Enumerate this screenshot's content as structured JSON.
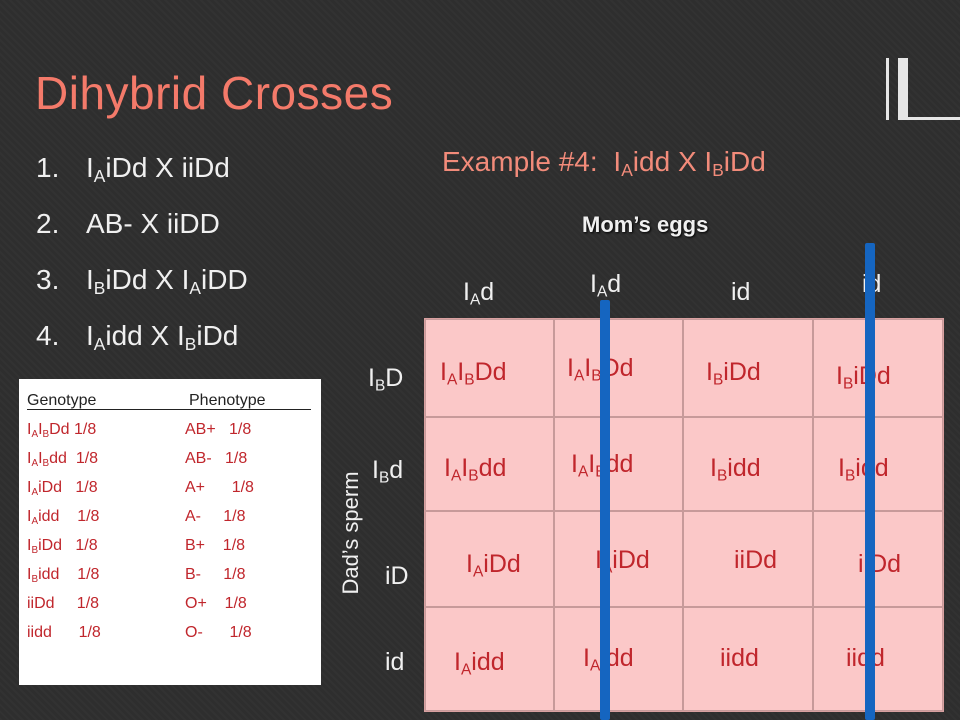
{
  "title": "Dihybrid Crosses",
  "crosses": [
    {
      "num": "1.",
      "parts": [
        [
          "I",
          "A"
        ],
        [
          "iDd X iiDd",
          ""
        ]
      ]
    },
    {
      "num": "2.",
      "parts": [
        [
          "AB- X iiDD",
          ""
        ]
      ]
    },
    {
      "num": "3.",
      "parts": [
        [
          "I",
          "B"
        ],
        [
          "iDd X I",
          ""
        ],
        [
          "",
          "A"
        ],
        [
          "iDD",
          ""
        ]
      ]
    },
    {
      "num": "4.",
      "parts": [
        [
          "I",
          "A"
        ],
        [
          "idd X I",
          ""
        ],
        [
          "",
          "B"
        ],
        [
          "iDd",
          ""
        ]
      ]
    }
  ],
  "example": {
    "prefix": "Example #4:",
    "parts": [
      [
        "I",
        "A"
      ],
      [
        "idd X I",
        ""
      ],
      [
        "",
        "B"
      ],
      [
        "iDd",
        ""
      ]
    ]
  },
  "moms_label": "Mom’s eggs",
  "dads_label": "Dad’s sperm",
  "egg_headers": [
    [
      [
        "I",
        "A"
      ],
      [
        "d",
        ""
      ]
    ],
    [
      [
        "I",
        "A"
      ],
      [
        "d",
        ""
      ]
    ],
    [
      [
        "id",
        ""
      ]
    ],
    [
      [
        "id",
        ""
      ]
    ]
  ],
  "sperm_headers": [
    [
      [
        "I",
        "B"
      ],
      [
        "D",
        ""
      ]
    ],
    [
      [
        "I",
        "B"
      ],
      [
        "d",
        ""
      ]
    ],
    [
      [
        "iD",
        ""
      ]
    ],
    [
      [
        "id",
        ""
      ]
    ]
  ],
  "punnett": [
    [
      [
        [
          "I",
          "A"
        ],
        [
          "I",
          "B"
        ],
        [
          "Dd",
          ""
        ]
      ],
      [
        [
          "I",
          "A"
        ],
        [
          "I",
          "B"
        ],
        [
          "Dd",
          ""
        ]
      ],
      [
        [
          "I",
          "B"
        ],
        [
          "iDd",
          ""
        ]
      ],
      [
        [
          "I",
          "B"
        ],
        [
          "iDd",
          ""
        ]
      ]
    ],
    [
      [
        [
          "I",
          "A"
        ],
        [
          "I",
          "B"
        ],
        [
          "dd",
          ""
        ]
      ],
      [
        [
          "I",
          "A"
        ],
        [
          "I",
          "B"
        ],
        [
          "dd",
          ""
        ]
      ],
      [
        [
          "I",
          "B"
        ],
        [
          "idd",
          ""
        ]
      ],
      [
        [
          "I",
          "B"
        ],
        [
          "idd",
          ""
        ]
      ]
    ],
    [
      [
        [
          "I",
          "A"
        ],
        [
          "iDd",
          ""
        ]
      ],
      [
        [
          "I",
          "A"
        ],
        [
          "iDd",
          ""
        ]
      ],
      [
        [
          "iiDd",
          ""
        ]
      ],
      [
        [
          "iiDd",
          ""
        ]
      ]
    ],
    [
      [
        [
          "I",
          "A"
        ],
        [
          "idd",
          ""
        ]
      ],
      [
        [
          "I",
          "A"
        ],
        [
          "idd",
          ""
        ]
      ],
      [
        [
          "iidd",
          ""
        ]
      ],
      [
        [
          "iidd",
          ""
        ]
      ]
    ]
  ],
  "genotype_table": {
    "header_genotype": "Genotype",
    "header_phenotype": "Phenotype",
    "rows": [
      {
        "geno": [
          [
            "I",
            "A"
          ],
          [
            "I",
            "B"
          ],
          [
            "Dd 1/8",
            ""
          ]
        ],
        "pheno": "AB+   1/8"
      },
      {
        "geno": [
          [
            "I",
            "A"
          ],
          [
            "I",
            "B"
          ],
          [
            "dd  1/8",
            ""
          ]
        ],
        "pheno": "AB-   1/8"
      },
      {
        "geno": [
          [
            "I",
            "A"
          ],
          [
            "iDd   1/8",
            ""
          ]
        ],
        "pheno": "A+      1/8"
      },
      {
        "geno": [
          [
            "I",
            "A"
          ],
          [
            "idd    1/8",
            ""
          ]
        ],
        "pheno": "A-     1/8"
      },
      {
        "geno": [
          [
            "I",
            "B"
          ],
          [
            "iDd   1/8",
            ""
          ]
        ],
        "pheno": "B+    1/8"
      },
      {
        "geno": [
          [
            "I",
            "B"
          ],
          [
            "idd    1/8",
            ""
          ]
        ],
        "pheno": "B-     1/8"
      },
      {
        "geno": [
          [
            "iiDd     1/8",
            ""
          ]
        ],
        "pheno": "O+    1/8"
      },
      {
        "geno": [
          [
            "iidd      1/8",
            ""
          ]
        ],
        "pheno": "O-      1/8"
      }
    ]
  },
  "colors": {
    "title": "#f47a6a",
    "grid_fill": "#fbc8c8",
    "cell_text": "#c0262c",
    "bars": "#1565c0"
  }
}
